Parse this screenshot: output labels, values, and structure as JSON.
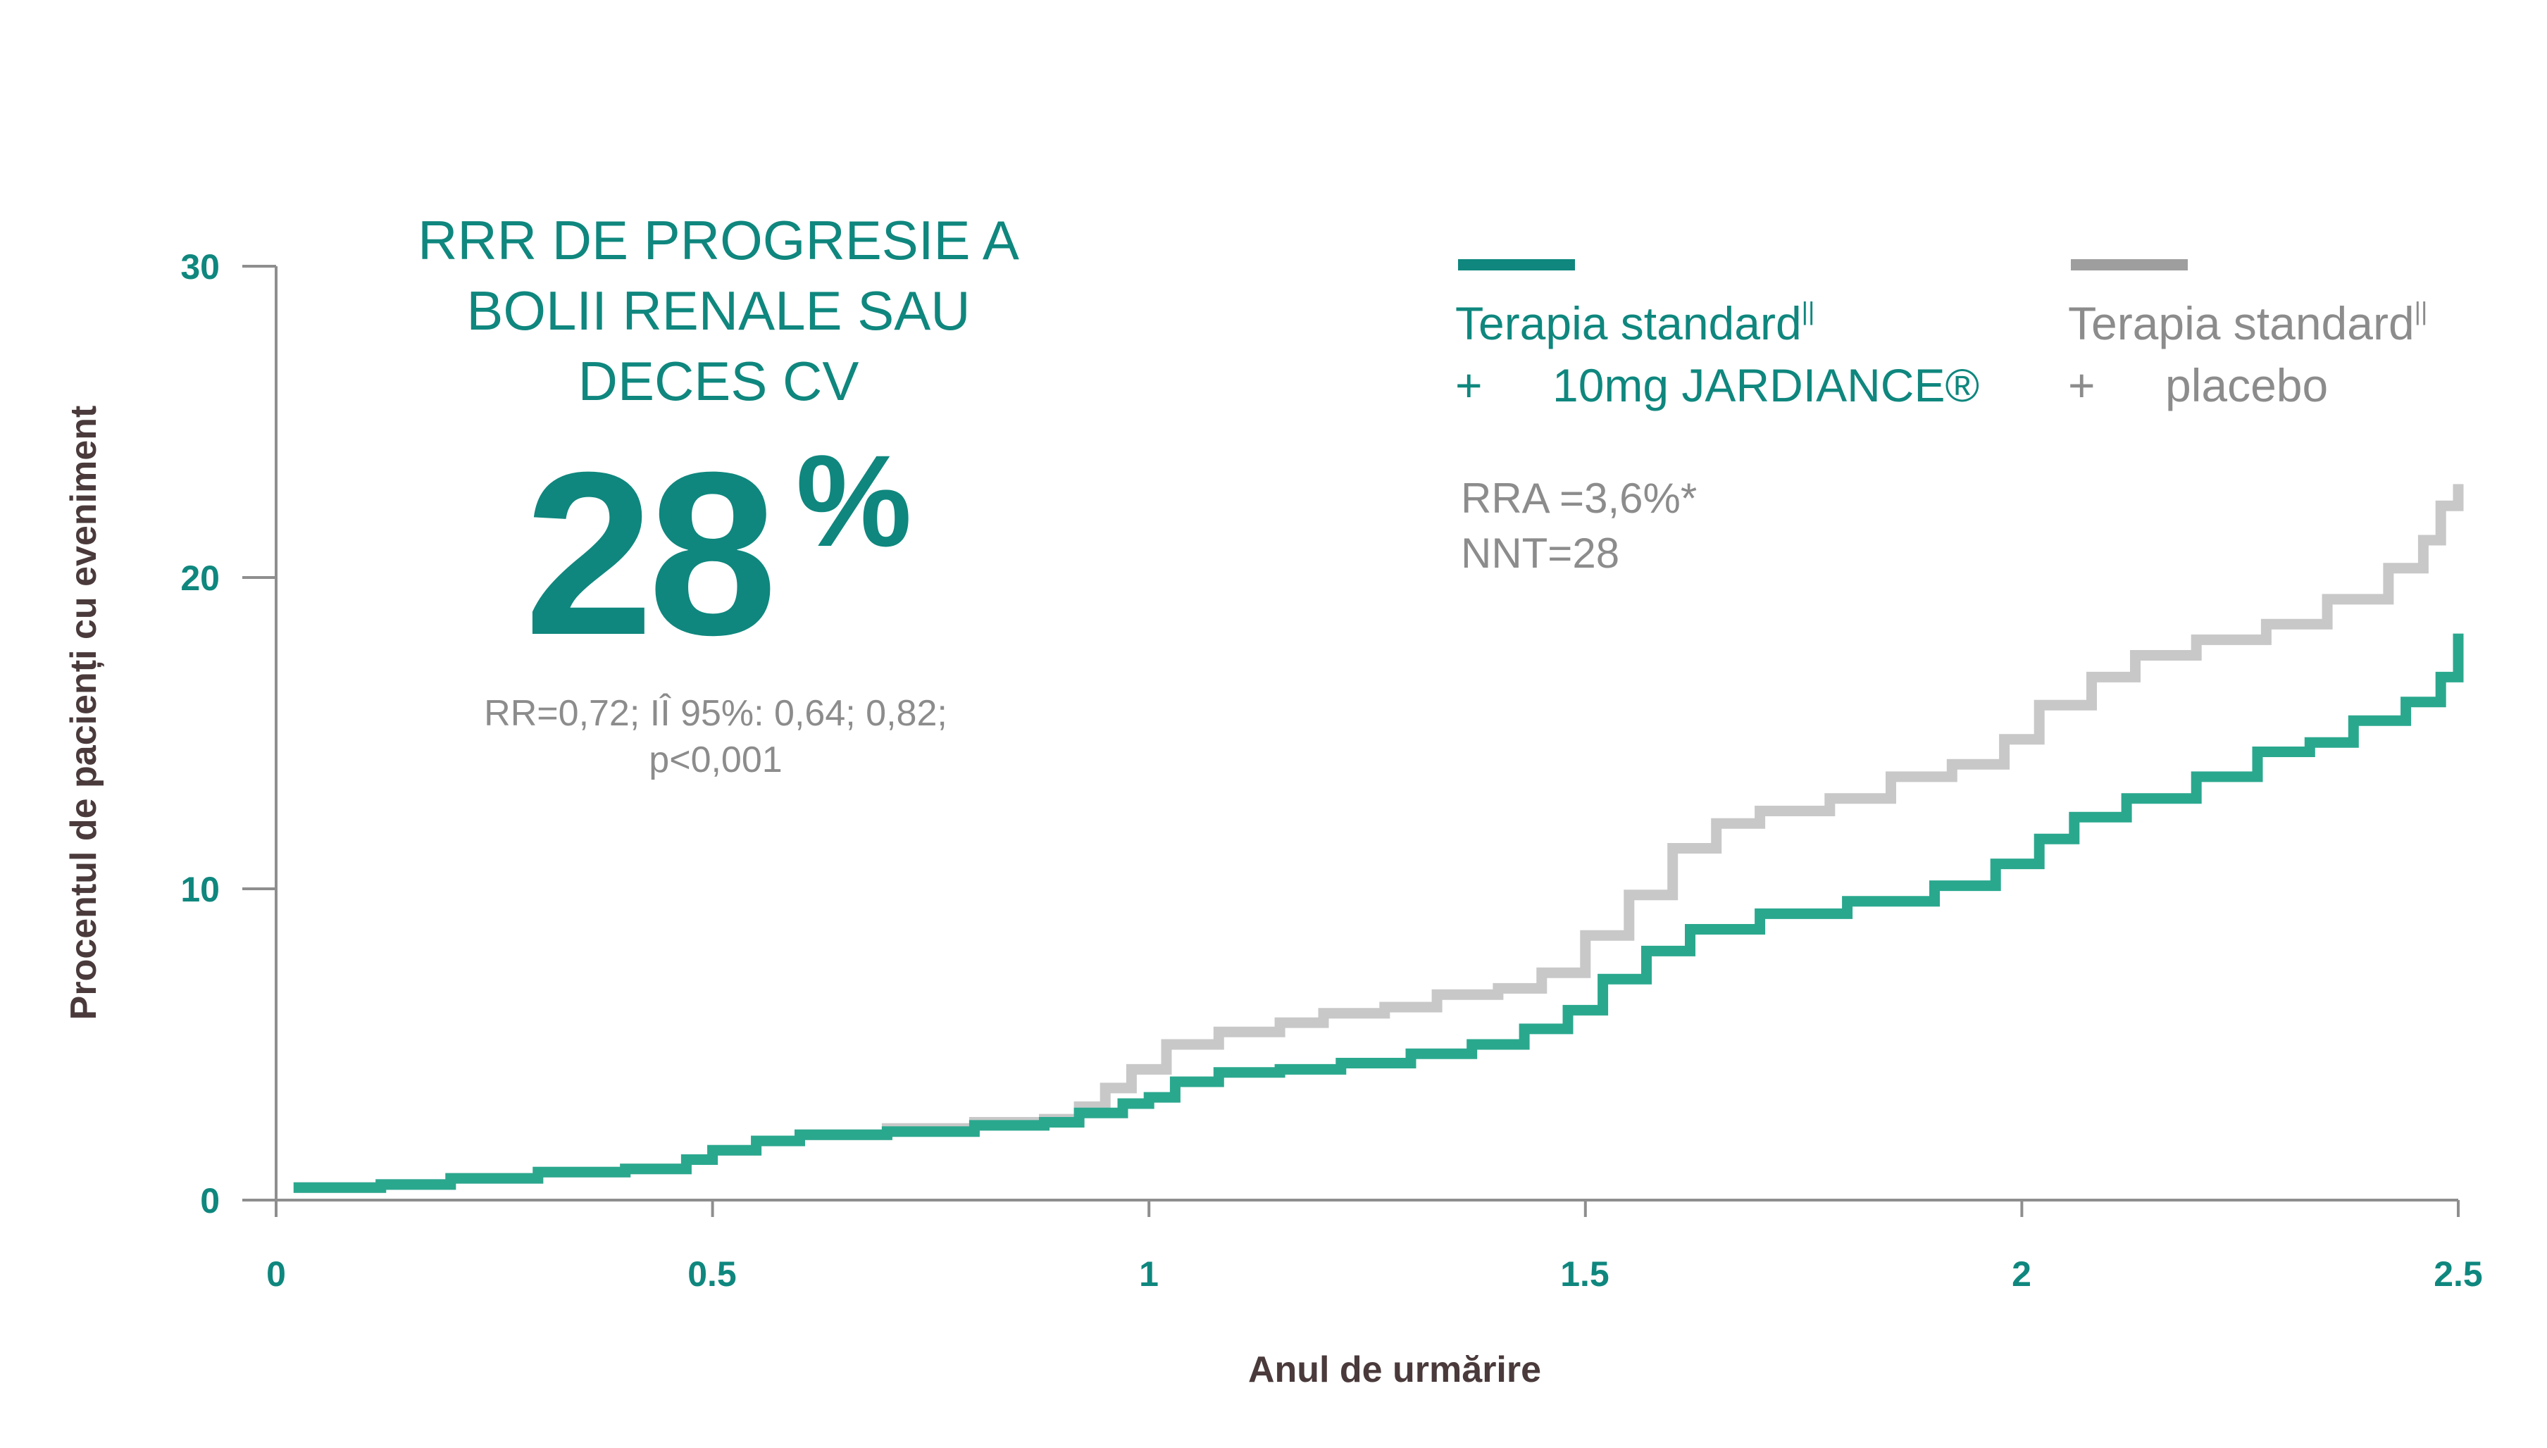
{
  "headline": {
    "line1": "RRR DE PROGRESIE A",
    "line2": "BOLII RENALE SAU",
    "line3": "DECES CV",
    "big_value": "28",
    "big_unit": "%",
    "stat_line1": "RR=0,72; IÎ 95%: 0,64; 0,82;",
    "stat_line2": "p<0,001"
  },
  "legend": {
    "jardiance": {
      "line1": "Terapia standard",
      "sup": "||",
      "plus": "+",
      "line2": "10mg JARDIANCE®",
      "color": "#0f877e"
    },
    "placebo": {
      "line1": "Terapia standard",
      "sup": "||",
      "plus": "+",
      "line2": "placebo",
      "color": "#9e9e9e"
    }
  },
  "metrics": {
    "rra": "RRA =3,6%*",
    "nnt": "NNT=28"
  },
  "chart_data": {
    "type": "line",
    "xlabel": "Anul de urmărire",
    "ylabel": "Procentul de pacienți cu eveniment",
    "xlim": [
      0,
      2.5
    ],
    "ylim": [
      0,
      30
    ],
    "x_ticks": [
      "0",
      "0.5",
      "1",
      "1.5",
      "2",
      "2.5"
    ],
    "y_ticks": [
      "0",
      "10",
      "20",
      "30"
    ],
    "series": [
      {
        "name": "Terapia standard + placebo",
        "color": "#c8c8c8",
        "points": [
          [
            0.02,
            0.4
          ],
          [
            0.12,
            0.5
          ],
          [
            0.2,
            0.7
          ],
          [
            0.3,
            0.9
          ],
          [
            0.4,
            1.0
          ],
          [
            0.47,
            1.3
          ],
          [
            0.5,
            1.6
          ],
          [
            0.55,
            1.9
          ],
          [
            0.6,
            2.1
          ],
          [
            0.7,
            2.3
          ],
          [
            0.8,
            2.5
          ],
          [
            0.88,
            2.6
          ],
          [
            0.92,
            3.0
          ],
          [
            0.95,
            3.6
          ],
          [
            0.98,
            4.2
          ],
          [
            1.02,
            5.0
          ],
          [
            1.08,
            5.4
          ],
          [
            1.15,
            5.7
          ],
          [
            1.2,
            6.0
          ],
          [
            1.27,
            6.2
          ],
          [
            1.33,
            6.6
          ],
          [
            1.4,
            6.8
          ],
          [
            1.45,
            7.3
          ],
          [
            1.5,
            8.5
          ],
          [
            1.55,
            9.8
          ],
          [
            1.6,
            11.3
          ],
          [
            1.65,
            12.1
          ],
          [
            1.7,
            12.5
          ],
          [
            1.78,
            12.9
          ],
          [
            1.85,
            13.6
          ],
          [
            1.92,
            14.0
          ],
          [
            1.98,
            14.8
          ],
          [
            2.02,
            15.9
          ],
          [
            2.08,
            16.8
          ],
          [
            2.13,
            17.5
          ],
          [
            2.2,
            18.0
          ],
          [
            2.28,
            18.5
          ],
          [
            2.35,
            19.3
          ],
          [
            2.42,
            20.3
          ],
          [
            2.46,
            21.2
          ],
          [
            2.48,
            22.3
          ],
          [
            2.5,
            23.0
          ]
        ]
      },
      {
        "name": "Terapia standard + 10mg JARDIANCE®",
        "color": "#2aa88e",
        "points": [
          [
            0.02,
            0.4
          ],
          [
            0.12,
            0.5
          ],
          [
            0.2,
            0.7
          ],
          [
            0.3,
            0.9
          ],
          [
            0.4,
            1.0
          ],
          [
            0.47,
            1.3
          ],
          [
            0.5,
            1.6
          ],
          [
            0.55,
            1.9
          ],
          [
            0.6,
            2.1
          ],
          [
            0.7,
            2.2
          ],
          [
            0.8,
            2.4
          ],
          [
            0.88,
            2.5
          ],
          [
            0.92,
            2.8
          ],
          [
            0.97,
            3.1
          ],
          [
            1.0,
            3.3
          ],
          [
            1.03,
            3.8
          ],
          [
            1.08,
            4.1
          ],
          [
            1.15,
            4.2
          ],
          [
            1.22,
            4.4
          ],
          [
            1.3,
            4.7
          ],
          [
            1.37,
            5.0
          ],
          [
            1.43,
            5.5
          ],
          [
            1.48,
            6.1
          ],
          [
            1.52,
            7.1
          ],
          [
            1.57,
            8.0
          ],
          [
            1.62,
            8.7
          ],
          [
            1.7,
            9.2
          ],
          [
            1.8,
            9.6
          ],
          [
            1.9,
            10.1
          ],
          [
            1.97,
            10.8
          ],
          [
            2.02,
            11.6
          ],
          [
            2.06,
            12.3
          ],
          [
            2.12,
            12.9
          ],
          [
            2.2,
            13.6
          ],
          [
            2.27,
            14.4
          ],
          [
            2.33,
            14.7
          ],
          [
            2.38,
            15.4
          ],
          [
            2.44,
            16.0
          ],
          [
            2.48,
            16.8
          ],
          [
            2.5,
            18.2
          ]
        ]
      }
    ]
  }
}
